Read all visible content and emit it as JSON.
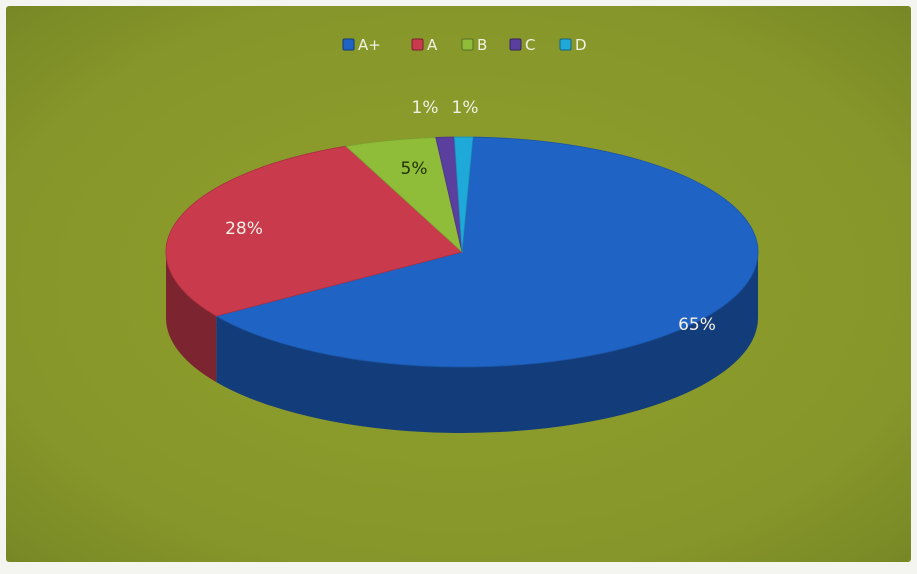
{
  "chart_data": {
    "type": "pie",
    "title": "",
    "legend_position": "top",
    "categories": [
      "A+",
      "A",
      "B",
      "C",
      "D"
    ],
    "values": [
      65,
      28,
      5,
      1,
      1
    ],
    "labels": [
      "65%",
      "28%",
      "5%",
      "1%",
      "1%"
    ],
    "colors": [
      "#1f63c4",
      "#c83a4c",
      "#8fbd3a",
      "#5a3f9e",
      "#1fa9d8"
    ],
    "background": "#8a9a2a"
  }
}
